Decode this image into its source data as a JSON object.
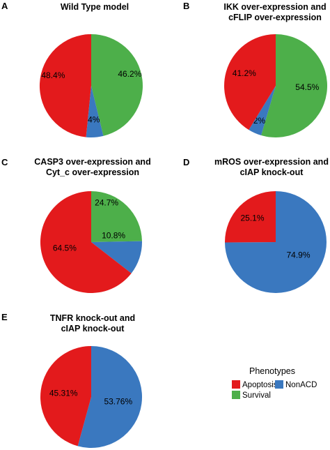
{
  "colors": {
    "Apoptosis": "#E31A1C",
    "NonACD": "#3A78BF",
    "Survival": "#4DAF4A"
  },
  "legend": {
    "title": "Phenotypes",
    "entries": [
      {
        "name": "Apoptosis",
        "color": "#E31A1C"
      },
      {
        "name": "NonACD",
        "color": "#3A78BF"
      },
      {
        "name": "Survival",
        "color": "#4DAF4A"
      }
    ]
  },
  "chart_data": [
    {
      "type": "pie",
      "letter": "A",
      "title_lines": [
        "Wild Type model"
      ],
      "slices": [
        {
          "name": "Survival",
          "value": 46.2,
          "label": "46.2%"
        },
        {
          "name": "NonACD",
          "value": 5.4,
          "label": "5.4%"
        },
        {
          "name": "Apoptosis",
          "value": 48.4,
          "label": "48.4%"
        }
      ]
    },
    {
      "type": "pie",
      "letter": "B",
      "title_lines": [
        "IKK over-expression and",
        "cFLIP over-expression"
      ],
      "slices": [
        {
          "name": "Survival",
          "value": 54.5,
          "label": "54.5%"
        },
        {
          "name": "NonACD",
          "value": 4.2,
          "label": "4.2%"
        },
        {
          "name": "Apoptosis",
          "value": 41.2,
          "label": "41.2%"
        }
      ]
    },
    {
      "type": "pie",
      "letter": "C",
      "title_lines": [
        "CASP3 over-expression and",
        "Cyt_c over-expression"
      ],
      "slices": [
        {
          "name": "Survival",
          "value": 24.7,
          "label": "24.7%"
        },
        {
          "name": "NonACD",
          "value": 10.8,
          "label": "10.8%"
        },
        {
          "name": "Apoptosis",
          "value": 64.5,
          "label": "64.5%"
        }
      ]
    },
    {
      "type": "pie",
      "letter": "D",
      "title_lines": [
        "mROS over-expression and",
        "cIAP knock-out"
      ],
      "slices": [
        {
          "name": "NonACD",
          "value": 74.9,
          "label": "74.9%"
        },
        {
          "name": "Apoptosis",
          "value": 25.1,
          "label": "25.1%"
        }
      ]
    },
    {
      "type": "pie",
      "letter": "E",
      "title_lines": [
        "TNFR knock-out and",
        "cIAP knock-out"
      ],
      "slices": [
        {
          "name": "NonACD",
          "value": 53.76,
          "label": "53.76%"
        },
        {
          "name": "Apoptosis",
          "value": 45.31,
          "label": "45.31%"
        }
      ]
    }
  ]
}
